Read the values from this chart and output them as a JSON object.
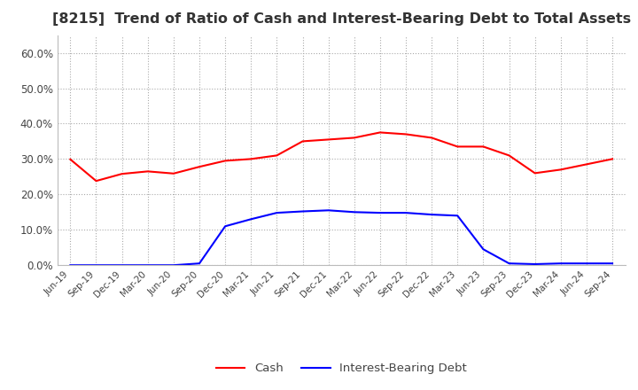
{
  "title": "[8215]  Trend of Ratio of Cash and Interest-Bearing Debt to Total Assets",
  "x_labels": [
    "Jun-19",
    "Sep-19",
    "Dec-19",
    "Mar-20",
    "Jun-20",
    "Sep-20",
    "Dec-20",
    "Mar-21",
    "Jun-21",
    "Sep-21",
    "Dec-21",
    "Mar-22",
    "Jun-22",
    "Sep-22",
    "Dec-22",
    "Mar-23",
    "Jun-23",
    "Sep-23",
    "Dec-23",
    "Mar-24",
    "Jun-24",
    "Sep-24"
  ],
  "cash": [
    0.299,
    0.238,
    0.258,
    0.265,
    0.259,
    0.278,
    0.295,
    0.3,
    0.31,
    0.35,
    0.355,
    0.36,
    0.375,
    0.37,
    0.36,
    0.335,
    0.335,
    0.31,
    0.26,
    0.27,
    0.285,
    0.3
  ],
  "interest_bearing_debt": [
    0.0,
    0.0,
    0.0,
    0.0,
    0.0,
    0.005,
    0.11,
    0.13,
    0.148,
    0.152,
    0.155,
    0.15,
    0.148,
    0.148,
    0.143,
    0.14,
    0.045,
    0.005,
    0.003,
    0.005,
    0.005,
    0.005
  ],
  "cash_color": "#ff0000",
  "debt_color": "#0000ff",
  "background_color": "#ffffff",
  "grid_color": "#aaaaaa",
  "ylim": [
    0.0,
    0.65
  ],
  "yticks": [
    0.0,
    0.1,
    0.2,
    0.3,
    0.4,
    0.5,
    0.6
  ],
  "legend_cash": "Cash",
  "legend_debt": "Interest-Bearing Debt",
  "title_fontsize": 11.5
}
